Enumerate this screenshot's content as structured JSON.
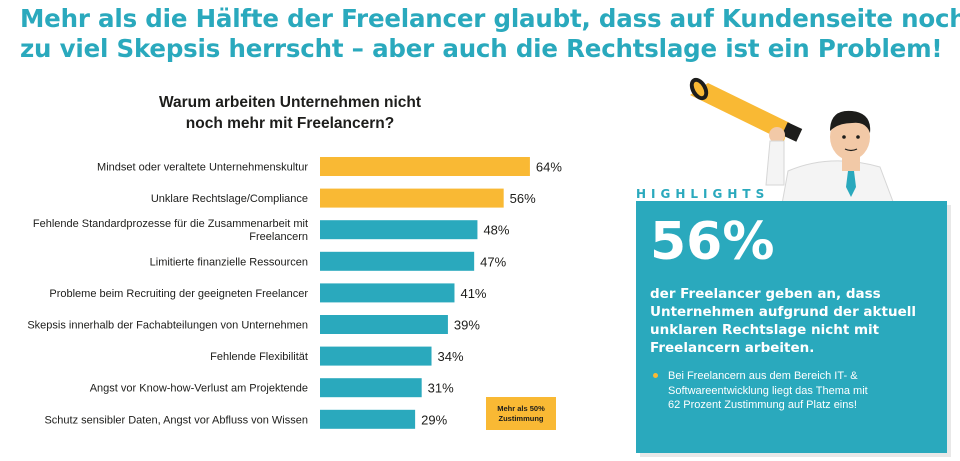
{
  "headline": {
    "line1": "Mehr als die Hälfte der Freelancer glaubt, dass auf Kundenseite noch",
    "line2": "zu viel Skepsis herrscht – aber auch die Rechtslage ist ein Problem!"
  },
  "chart_title": {
    "line1": "Warum  arbeiten Unternehmen nicht",
    "line2": "noch mehr mit Freelancern?"
  },
  "chart_data": {
    "type": "bar",
    "orientation": "horizontal",
    "title": "Warum  arbeiten Unternehmen nicht noch mehr mit Freelancern?",
    "categories": [
      [
        "Mindset oder veraltete Unternehmenskultur"
      ],
      [
        "Unklare Rechtslage/Compliance"
      ],
      [
        "Fehlende Standardprozesse für die Zusammenarbeit mit",
        "Freelancern"
      ],
      [
        "Limitierte finanzielle Ressourcen"
      ],
      [
        "Probleme beim Recruiting der geeigneten Freelancer"
      ],
      [
        "Skepsis innerhalb der Fachabteilungen von Unternehmen"
      ],
      [
        "Fehlende Flexibilität"
      ],
      [
        "Angst vor Know-how-Verlust am Projektende"
      ],
      [
        "Schutz sensibler Daten, Angst vor Abfluss von Wissen"
      ]
    ],
    "values": [
      64,
      56,
      48,
      47,
      41,
      39,
      34,
      31,
      29
    ],
    "value_labels": [
      "64%",
      "56%",
      "48%",
      "47%",
      "41%",
      "39%",
      "34%",
      "31%",
      "29%"
    ],
    "unit": "%",
    "highlight_threshold": 50,
    "colors": {
      "highlight": "#f9b934",
      "normal": "#2aa9bd"
    },
    "legend": [
      "Mehr als 50%",
      "Zustimmung"
    ],
    "legend_placement": "bottom-right",
    "grid": false
  },
  "highlights": {
    "label": "HIGHLIGHTS",
    "big_number": "56%",
    "text": [
      "der Freelancer geben an, dass",
      "Unternehmen aufgrund der aktuell",
      "unklaren Rechtslage nicht mit",
      "Freelancern arbeiten."
    ],
    "bullet": [
      "Bei Freelancern aus dem Bereich IT- &",
      "Softwareentwicklung liegt das Thema mit",
      "62 Prozent Zustimmung auf Platz eins!"
    ]
  },
  "colors": {
    "accent": "#2aa9bd",
    "highlight": "#f9b934",
    "text": "#1d1d1b"
  },
  "icons": {
    "illustration": "man-with-megaphone-icon"
  }
}
